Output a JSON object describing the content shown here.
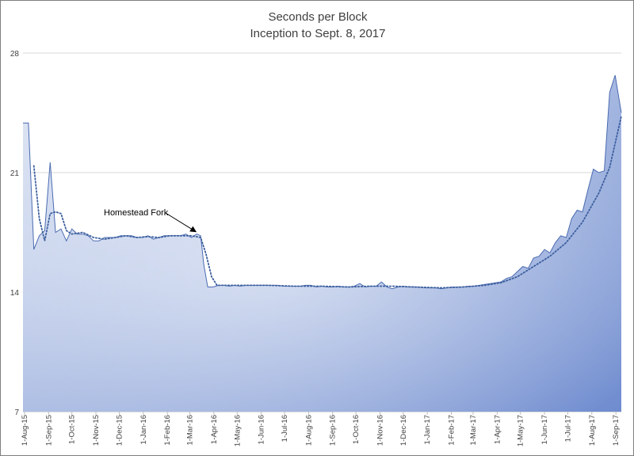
{
  "chart_data": {
    "type": "area",
    "title": "Seconds per Block",
    "subtitle": "Inception to Sept. 8, 2017",
    "xlabel": "",
    "ylabel": "",
    "ylim": [
      7,
      28
    ],
    "yticks": [
      7,
      14,
      21,
      28
    ],
    "grid": true,
    "legend": "none",
    "x_start": "2015-07-30",
    "x_end": "2017-09-08",
    "xtick_labels": [
      "1-Aug-15",
      "1-Sep-15",
      "1-Oct-15",
      "1-Nov-15",
      "1-Dec-15",
      "1-Jan-16",
      "1-Feb-16",
      "1-Mar-16",
      "1-Apr-16",
      "1-May-16",
      "1-Jun-16",
      "1-Jul-16",
      "1-Aug-16",
      "1-Sep-16",
      "1-Oct-16",
      "1-Nov-16",
      "1-Dec-16",
      "1-Jan-17",
      "1-Feb-17",
      "1-Mar-17",
      "1-Apr-17",
      "1-May-17",
      "1-Jun-17",
      "1-Jul-17",
      "1-Aug-17",
      "1-Sep-17"
    ],
    "xtick_dates": [
      "2015-08-01",
      "2015-09-01",
      "2015-10-01",
      "2015-11-01",
      "2015-12-01",
      "2016-01-01",
      "2016-02-01",
      "2016-03-01",
      "2016-04-01",
      "2016-05-01",
      "2016-06-01",
      "2016-07-01",
      "2016-08-01",
      "2016-09-01",
      "2016-10-01",
      "2016-11-01",
      "2016-12-01",
      "2017-01-01",
      "2017-02-01",
      "2017-03-01",
      "2017-04-01",
      "2017-05-01",
      "2017-06-01",
      "2017-07-01",
      "2017-08-01",
      "2017-09-01"
    ],
    "area_fill": [
      "#dfe6f4",
      "#6f8ccf"
    ],
    "area_stroke": "#4a6bb0",
    "trend_color": "#3c5f9e",
    "series": [
      {
        "values": [
          [
            "2015-07-30",
            23.9
          ],
          [
            "2015-08-06",
            23.9
          ],
          [
            "2015-08-13",
            16.5
          ],
          [
            "2015-08-20",
            17.3
          ],
          [
            "2015-08-27",
            17.6
          ],
          [
            "2015-09-03",
            21.6
          ],
          [
            "2015-09-10",
            17.5
          ],
          [
            "2015-09-17",
            17.7
          ],
          [
            "2015-09-24",
            17.0
          ],
          [
            "2015-10-01",
            17.7
          ],
          [
            "2015-10-08",
            17.4
          ],
          [
            "2015-10-15",
            17.4
          ],
          [
            "2015-10-22",
            17.3
          ],
          [
            "2015-10-29",
            17.0
          ],
          [
            "2015-11-05",
            17.0
          ],
          [
            "2015-11-12",
            17.2
          ],
          [
            "2015-11-19",
            17.2
          ],
          [
            "2015-11-26",
            17.2
          ],
          [
            "2015-12-03",
            17.3
          ],
          [
            "2015-12-10",
            17.3
          ],
          [
            "2015-12-17",
            17.3
          ],
          [
            "2015-12-24",
            17.2
          ],
          [
            "2015-12-31",
            17.2
          ],
          [
            "2016-01-07",
            17.3
          ],
          [
            "2016-01-14",
            17.1
          ],
          [
            "2016-01-21",
            17.2
          ],
          [
            "2016-01-28",
            17.3
          ],
          [
            "2016-02-04",
            17.3
          ],
          [
            "2016-02-11",
            17.3
          ],
          [
            "2016-02-18",
            17.3
          ],
          [
            "2016-02-25",
            17.4
          ],
          [
            "2016-03-03",
            17.2
          ],
          [
            "2016-03-10",
            17.4
          ],
          [
            "2016-03-15",
            17.3
          ],
          [
            "2016-03-19",
            15.6
          ],
          [
            "2016-03-24",
            14.3
          ],
          [
            "2016-03-31",
            14.3
          ],
          [
            "2016-04-07",
            14.4
          ],
          [
            "2016-04-14",
            14.4
          ],
          [
            "2016-04-21",
            14.35
          ],
          [
            "2016-04-28",
            14.4
          ],
          [
            "2016-05-05",
            14.35
          ],
          [
            "2016-05-12",
            14.4
          ],
          [
            "2016-05-19",
            14.4
          ],
          [
            "2016-05-26",
            14.4
          ],
          [
            "2016-06-02",
            14.4
          ],
          [
            "2016-06-09",
            14.4
          ],
          [
            "2016-06-16",
            14.4
          ],
          [
            "2016-06-23",
            14.4
          ],
          [
            "2016-06-30",
            14.35
          ],
          [
            "2016-07-07",
            14.35
          ],
          [
            "2016-07-14",
            14.35
          ],
          [
            "2016-07-21",
            14.35
          ],
          [
            "2016-07-28",
            14.4
          ],
          [
            "2016-08-04",
            14.4
          ],
          [
            "2016-08-11",
            14.3
          ],
          [
            "2016-08-18",
            14.35
          ],
          [
            "2016-08-25",
            14.3
          ],
          [
            "2016-09-01",
            14.3
          ],
          [
            "2016-09-08",
            14.35
          ],
          [
            "2016-09-15",
            14.3
          ],
          [
            "2016-09-22",
            14.3
          ],
          [
            "2016-09-29",
            14.35
          ],
          [
            "2016-10-06",
            14.5
          ],
          [
            "2016-10-13",
            14.3
          ],
          [
            "2016-10-20",
            14.35
          ],
          [
            "2016-10-27",
            14.35
          ],
          [
            "2016-11-03",
            14.6
          ],
          [
            "2016-11-10",
            14.3
          ],
          [
            "2016-11-17",
            14.2
          ],
          [
            "2016-11-24",
            14.3
          ],
          [
            "2016-12-01",
            14.35
          ],
          [
            "2016-12-08",
            14.3
          ],
          [
            "2016-12-15",
            14.3
          ],
          [
            "2016-12-22",
            14.3
          ],
          [
            "2016-12-29",
            14.25
          ],
          [
            "2017-01-05",
            14.25
          ],
          [
            "2017-01-12",
            14.25
          ],
          [
            "2017-01-19",
            14.2
          ],
          [
            "2017-01-26",
            14.25
          ],
          [
            "2017-02-02",
            14.3
          ],
          [
            "2017-02-09",
            14.3
          ],
          [
            "2017-02-16",
            14.3
          ],
          [
            "2017-02-23",
            14.35
          ],
          [
            "2017-03-02",
            14.35
          ],
          [
            "2017-03-09",
            14.4
          ],
          [
            "2017-03-16",
            14.45
          ],
          [
            "2017-03-23",
            14.5
          ],
          [
            "2017-03-30",
            14.55
          ],
          [
            "2017-04-06",
            14.6
          ],
          [
            "2017-04-13",
            14.8
          ],
          [
            "2017-04-20",
            14.9
          ],
          [
            "2017-04-27",
            15.2
          ],
          [
            "2017-05-04",
            15.5
          ],
          [
            "2017-05-11",
            15.4
          ],
          [
            "2017-05-18",
            16.0
          ],
          [
            "2017-05-25",
            16.1
          ],
          [
            "2017-06-01",
            16.5
          ],
          [
            "2017-06-08",
            16.3
          ],
          [
            "2017-06-15",
            16.9
          ],
          [
            "2017-06-22",
            17.3
          ],
          [
            "2017-06-29",
            17.2
          ],
          [
            "2017-07-06",
            18.3
          ],
          [
            "2017-07-13",
            18.8
          ],
          [
            "2017-07-20",
            18.7
          ],
          [
            "2017-07-27",
            20.0
          ],
          [
            "2017-08-03",
            21.2
          ],
          [
            "2017-08-10",
            21.0
          ],
          [
            "2017-08-17",
            21.1
          ],
          [
            "2017-08-24",
            25.7
          ],
          [
            "2017-08-31",
            26.7
          ],
          [
            "2017-09-08",
            24.5
          ]
        ]
      },
      {
        "style": "dotted",
        "values": [
          [
            "2015-08-13",
            21.4
          ],
          [
            "2015-08-20",
            18.3
          ],
          [
            "2015-08-27",
            17.0
          ],
          [
            "2015-09-03",
            18.6
          ],
          [
            "2015-09-10",
            18.7
          ],
          [
            "2015-09-17",
            18.6
          ],
          [
            "2015-09-24",
            17.6
          ],
          [
            "2015-10-01",
            17.4
          ],
          [
            "2015-10-15",
            17.5
          ],
          [
            "2015-10-29",
            17.2
          ],
          [
            "2015-11-12",
            17.1
          ],
          [
            "2015-11-26",
            17.2
          ],
          [
            "2015-12-10",
            17.3
          ],
          [
            "2015-12-24",
            17.2
          ],
          [
            "2016-01-07",
            17.25
          ],
          [
            "2016-01-21",
            17.2
          ],
          [
            "2016-02-04",
            17.3
          ],
          [
            "2016-02-18",
            17.3
          ],
          [
            "2016-03-03",
            17.3
          ],
          [
            "2016-03-15",
            17.2
          ],
          [
            "2016-03-22",
            16.2
          ],
          [
            "2016-03-29",
            14.9
          ],
          [
            "2016-04-05",
            14.4
          ],
          [
            "2016-05-05",
            14.4
          ],
          [
            "2016-06-09",
            14.4
          ],
          [
            "2016-07-14",
            14.35
          ],
          [
            "2016-08-18",
            14.35
          ],
          [
            "2016-09-22",
            14.3
          ],
          [
            "2016-10-20",
            14.35
          ],
          [
            "2016-11-17",
            14.35
          ],
          [
            "2016-12-15",
            14.3
          ],
          [
            "2017-01-19",
            14.25
          ],
          [
            "2017-02-16",
            14.3
          ],
          [
            "2017-03-16",
            14.4
          ],
          [
            "2017-04-06",
            14.55
          ],
          [
            "2017-04-27",
            14.9
          ],
          [
            "2017-05-18",
            15.5
          ],
          [
            "2017-06-08",
            16.1
          ],
          [
            "2017-06-29",
            16.9
          ],
          [
            "2017-07-20",
            18.1
          ],
          [
            "2017-08-10",
            19.8
          ],
          [
            "2017-08-24",
            21.3
          ],
          [
            "2017-09-08",
            24.3
          ]
        ]
      }
    ],
    "annotations": [
      {
        "text": "Homestead Fork",
        "target": [
          "2016-03-15",
          17.4
        ]
      }
    ]
  }
}
